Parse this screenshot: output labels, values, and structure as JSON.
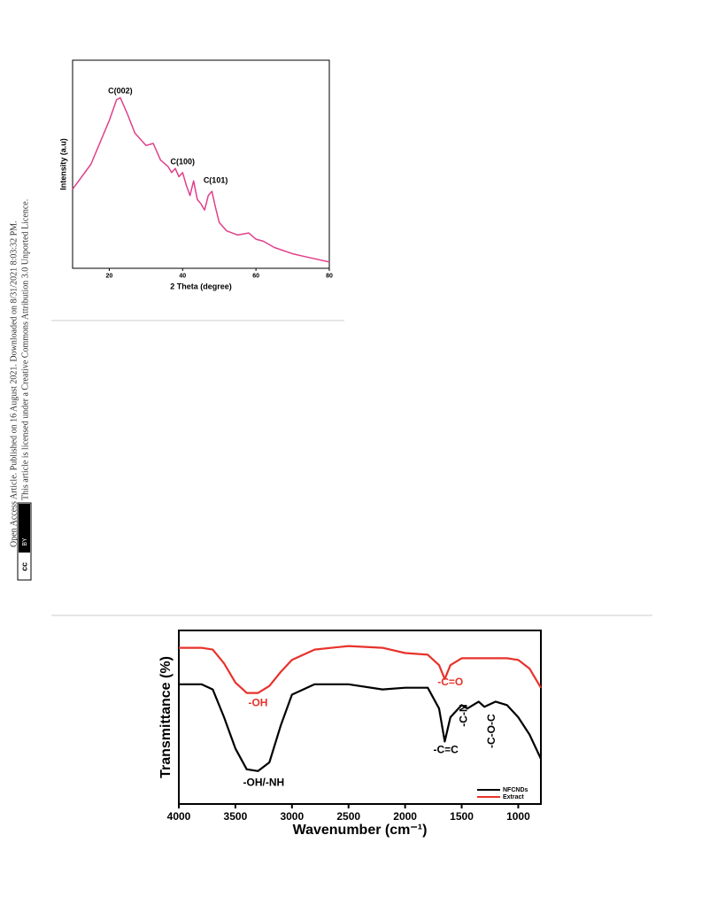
{
  "sidebar": {
    "line1": "Open Access Article. Published on 16 August 2021. Downloaded on 8/31/2021 8:03:32 PM.",
    "line2": "This article is licensed under a Creative Commons Attribution 3.0 Unported Licence.",
    "badge_cc": "cc",
    "badge_by": "BY"
  },
  "chart_data": [
    {
      "type": "line",
      "xlabel": "2 Theta (degree)",
      "ylabel": "Intensity (a.u)",
      "color": "#e0408a",
      "x": [
        10,
        15,
        20,
        22,
        23,
        25,
        27,
        30,
        32,
        34,
        36,
        37,
        38,
        39,
        40,
        41,
        42,
        43,
        44,
        45,
        46,
        47,
        48,
        49,
        50,
        52,
        55,
        58,
        60,
        62,
        65,
        70,
        75,
        80
      ],
      "values": [
        38,
        50,
        71,
        81,
        82,
        74,
        65,
        59,
        60,
        52,
        49,
        46,
        48,
        44,
        46,
        40,
        35,
        42,
        33,
        31,
        28,
        35,
        37,
        29,
        22,
        18,
        16,
        17,
        14,
        13,
        10,
        7,
        5,
        3
      ],
      "xlim": [
        10,
        80
      ],
      "xticks": [
        20,
        40,
        60,
        80
      ],
      "ylim": [
        0,
        100
      ],
      "annotations": [
        {
          "text": "C(002)",
          "x": 23,
          "y": 85
        },
        {
          "text": "C(100)",
          "x": 40,
          "y": 51
        },
        {
          "text": "C(101)",
          "x": 49,
          "y": 42
        }
      ]
    },
    {
      "type": "line",
      "xlabel": "Wavenumber (cm⁻¹)",
      "ylabel": "Transmittance (%)",
      "legend": "lower right",
      "x": [
        4000,
        3800,
        3700,
        3600,
        3500,
        3400,
        3300,
        3200,
        3100,
        3000,
        2800,
        2500,
        2200,
        2000,
        1800,
        1700,
        1650,
        1600,
        1500,
        1450,
        1350,
        1300,
        1200,
        1100,
        1000,
        900,
        800
      ],
      "series": [
        {
          "name": "NFCNDs",
          "color": "#000000",
          "values": [
            69,
            69,
            66,
            50,
            32,
            20,
            19,
            24,
            45,
            63,
            69,
            69,
            66,
            67,
            67,
            55,
            36,
            50,
            57,
            55,
            59,
            56,
            59,
            57,
            50,
            40,
            26
          ]
        },
        {
          "name": "Extract",
          "color": "#e8322b",
          "values": [
            90,
            90,
            89,
            81,
            70,
            64,
            64,
            68,
            76,
            83,
            89,
            91,
            90,
            87,
            86,
            80,
            72,
            80,
            84,
            84,
            84,
            84,
            84,
            84,
            83,
            78,
            67
          ]
        }
      ],
      "xlim": [
        4000,
        800
      ],
      "xticks": [
        4000,
        3500,
        3000,
        2500,
        2000,
        1500,
        1000
      ],
      "ylim": [
        0,
        100
      ],
      "annotations": [
        {
          "text": "-OH",
          "x": 3300,
          "y": 58,
          "color": "#e8322b"
        },
        {
          "text": "-OH/-NH",
          "x": 3250,
          "y": 12,
          "color": "#000000"
        },
        {
          "text": "-C=O",
          "x": 1600,
          "y": 70,
          "color": "#e8322b"
        },
        {
          "text": "-C=C",
          "x": 1640,
          "y": 31,
          "color": "#000000"
        },
        {
          "text": "-C-N",
          "x": 1480,
          "y": 51,
          "color": "#000000",
          "rotation": -90
        },
        {
          "text": "-C-O-C",
          "x": 1230,
          "y": 42,
          "color": "#000000",
          "rotation": -90
        }
      ]
    }
  ]
}
